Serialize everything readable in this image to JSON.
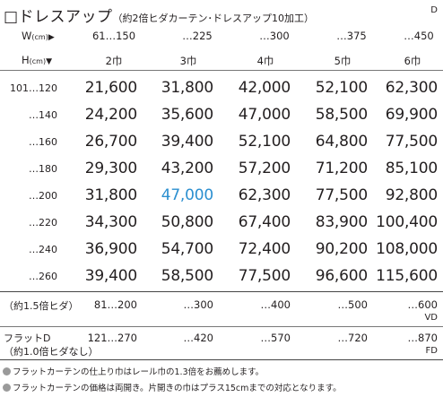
{
  "title": "□ドレスアップ",
  "subtitle": "（約2倍ヒダカーテン･ドレスアップ10加工）",
  "badge": "D",
  "width_header": {
    "label": "W",
    "unit": "(cm)",
    "arrow": "▶",
    "ranges": [
      "61…150",
      "…225",
      "…300",
      "…375",
      "…450"
    ]
  },
  "height_header": {
    "label": "H",
    "unit": "(cm)",
    "arrow": "▼",
    "panels": [
      "2巾",
      "3巾",
      "4巾",
      "5巾",
      "6巾"
    ]
  },
  "rows": [
    {
      "height": "101…120",
      "prices": [
        "21,600",
        "31,800",
        "42,000",
        "52,100",
        "62,300"
      ]
    },
    {
      "height": "…140",
      "prices": [
        "24,200",
        "35,600",
        "47,000",
        "58,500",
        "69,900"
      ]
    },
    {
      "height": "…160",
      "prices": [
        "26,700",
        "39,400",
        "52,100",
        "64,800",
        "77,500"
      ]
    },
    {
      "height": "…180",
      "prices": [
        "29,300",
        "43,200",
        "57,200",
        "71,200",
        "85,100"
      ]
    },
    {
      "height": "…200",
      "prices": [
        "31,800",
        "47,000",
        "62,300",
        "77,500",
        "92,800"
      ]
    },
    {
      "height": "…220",
      "prices": [
        "34,300",
        "50,800",
        "67,400",
        "83,900",
        "100,400"
      ]
    },
    {
      "height": "…240",
      "prices": [
        "36,900",
        "54,700",
        "72,400",
        "90,200",
        "108,000"
      ]
    },
    {
      "height": "…260",
      "prices": [
        "39,400",
        "58,500",
        "77,500",
        "96,600",
        "115,600"
      ]
    }
  ],
  "highlight_color": "#2b8fd0",
  "option_1_5": {
    "label": "（約1.5倍ヒダ）",
    "ranges": [
      "81…200",
      "…300",
      "…400",
      "…500",
      "…600"
    ],
    "code": "VD"
  },
  "option_flat": {
    "label_line1": "フラットD",
    "label_line2": "（約1.0倍ヒダなし）",
    "ranges": [
      "121…270",
      "…420",
      "…570",
      "…720",
      "…870"
    ],
    "code": "FD"
  },
  "notes": [
    "フラットカーテンの仕上り巾はレール巾の1.3倍をお薦めします。",
    "フラットカーテンの価格は両開き。片開きの巾はプラス15cmまでの対応となります。"
  ]
}
